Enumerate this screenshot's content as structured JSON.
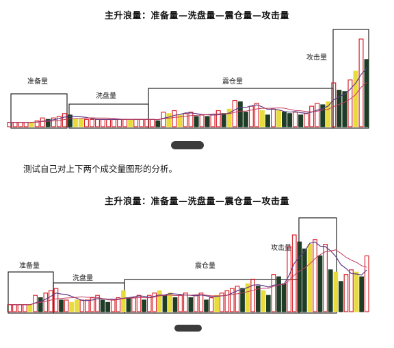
{
  "chart_data": [
    {
      "type": "bar",
      "title": "主升浪量：准备量—洗盘量—震仓量—攻击量",
      "annotations": [
        "准备量",
        "洗盘量",
        "震仓量",
        "攻击量"
      ],
      "series": [
        {
          "values": [
            3,
            3,
            3,
            3,
            3,
            4,
            6,
            5,
            6,
            7,
            9,
            8,
            5,
            5,
            5,
            5,
            5,
            5,
            5,
            5,
            5,
            5,
            5,
            5,
            5,
            5,
            5,
            4,
            10,
            9,
            11,
            8,
            9,
            10,
            7,
            8,
            7,
            8,
            11,
            9,
            12,
            18,
            17,
            10,
            14,
            16,
            11,
            8,
            12,
            11,
            10,
            9,
            10,
            8,
            9,
            14,
            16,
            15,
            17,
            30,
            25,
            24,
            32,
            38,
            60,
            46
          ]
        }
      ]
    },
    {
      "type": "bar",
      "title": "主升浪量：准备量—洗盘量—震仓量—攻击量",
      "annotations": [
        "准备量",
        "洗盘量",
        "震仓量",
        "攻击量"
      ],
      "series": [
        {
          "values": [
            3,
            3,
            3,
            3,
            3,
            7,
            6,
            8,
            9,
            10,
            5,
            5,
            4,
            5,
            5,
            5,
            6,
            7,
            5,
            4,
            5,
            6,
            9,
            6,
            6,
            7,
            5,
            7,
            8,
            9,
            7,
            8,
            6,
            7,
            8,
            6,
            7,
            8,
            5,
            6,
            7,
            8,
            9,
            10,
            11,
            10,
            12,
            14,
            11,
            9,
            7,
            16,
            15,
            12,
            28,
            33,
            30,
            27,
            29,
            31,
            24,
            29,
            18,
            17,
            13,
            16,
            18,
            17,
            15,
            24
          ]
        }
      ]
    }
  ],
  "charts": [
    {
      "title": "主升浪量：准备量—洗盘量—震仓量—攻击量",
      "labels": {
        "prep": "准备量",
        "wash": "洗盘量",
        "shake": "震仓量",
        "attack": "攻击量"
      }
    },
    {
      "title": "主升浪量：准备量—洗盘量—震仓量—攻击量",
      "labels": {
        "prep": "准备量",
        "wash": "洗盘量",
        "shake": "震仓量",
        "attack": "攻击量"
      }
    }
  ],
  "caption": "测试自己对上下两个成交量图形的分析。",
  "colors": {
    "red": "#d8202a",
    "green": "#1f3d26",
    "yellow": "#e8dc3c",
    "ma_purple": "#5a3a86",
    "ma_red": "#c03a5a"
  }
}
